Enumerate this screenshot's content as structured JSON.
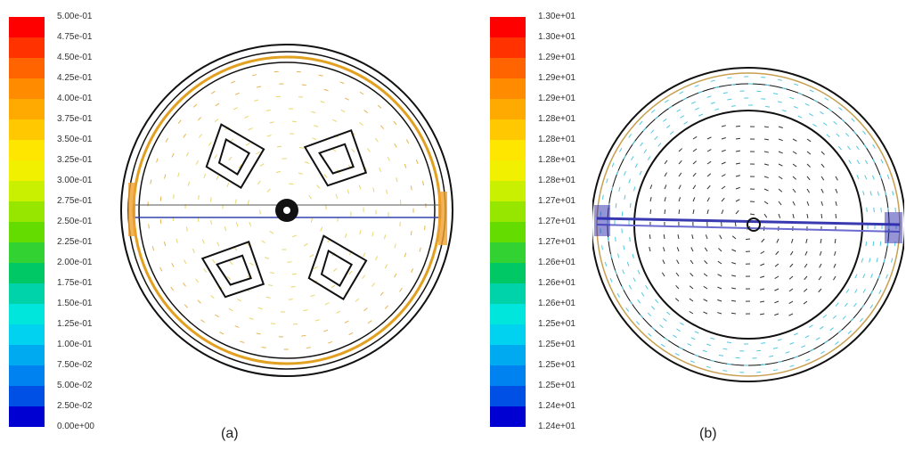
{
  "panel_a": {
    "caption": "(a)",
    "colorbar_labels": [
      "5.00e-01",
      "4.75e-01",
      "4.50e-01",
      "4.25e-01",
      "4.00e-01",
      "3.75e-01",
      "3.50e-01",
      "3.25e-01",
      "3.00e-01",
      "2.75e-01",
      "2.50e-01",
      "2.25e-01",
      "2.00e-01",
      "1.75e-01",
      "1.50e-01",
      "1.25e-01",
      "1.00e-01",
      "7.50e-02",
      "5.00e-02",
      "2.50e-02",
      "0.00e+00"
    ]
  },
  "panel_b": {
    "caption": "(b)",
    "colorbar_labels": [
      "1.30e+01",
      "1.30e+01",
      "1.29e+01",
      "1.29e+01",
      "1.29e+01",
      "1.28e+01",
      "1.28e+01",
      "1.28e+01",
      "1.28e+01",
      "1.27e+01",
      "1.27e+01",
      "1.27e+01",
      "1.26e+01",
      "1.26e+01",
      "1.26e+01",
      "1.25e+01",
      "1.25e+01",
      "1.25e+01",
      "1.25e+01",
      "1.24e+01",
      "1.24e+01"
    ]
  },
  "colors": {
    "scale": [
      "#ff0000",
      "#ff3200",
      "#ff6400",
      "#ff8c00",
      "#ffaa00",
      "#ffc800",
      "#ffe600",
      "#f0f000",
      "#c8f000",
      "#96e600",
      "#64dc00",
      "#32d232",
      "#00c864",
      "#00d2aa",
      "#00e6dc",
      "#00d2f0",
      "#00aaf0",
      "#0082f0",
      "#0050e6",
      "#0000d2"
    ]
  }
}
